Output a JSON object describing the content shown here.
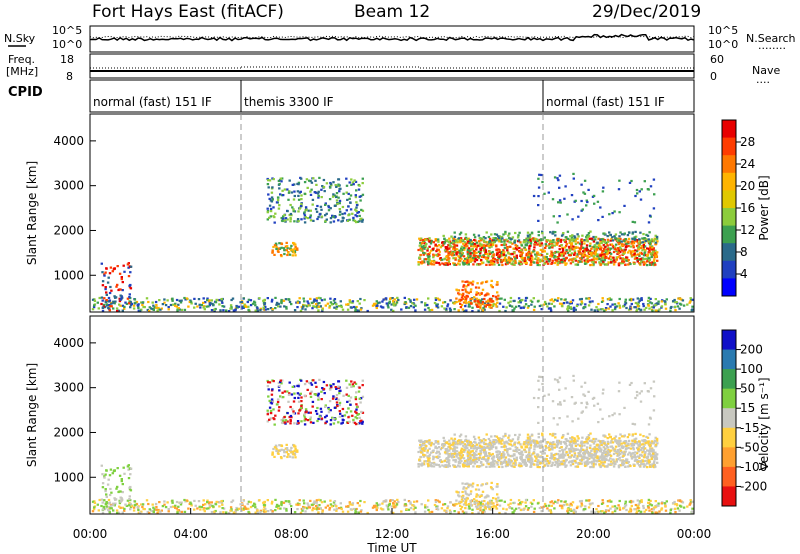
{
  "header": {
    "station": "Fort Hays East (fitACF)",
    "beam": "Beam 12",
    "date": "29/Dec/2019"
  },
  "noise_panel": {
    "left_label": "N.Sky",
    "left_ticks": [
      "10^5",
      "10^0"
    ],
    "right_ticks": [
      "10^5",
      "10^0"
    ],
    "right_label": "N.Search",
    "right_legend": "........"
  },
  "freq_panel": {
    "left_label_top": "Freq.",
    "left_label_unit": "[MHz]",
    "left_ticks": [
      "18",
      "8"
    ],
    "right_ticks": [
      "60",
      "0"
    ],
    "right_label": "Nave",
    "right_legend": "...."
  },
  "cpid_panel": {
    "label": "CPID",
    "segments": [
      {
        "name": "normal (fast) 151 IF",
        "start_h": 0.0,
        "end_h": 6.0
      },
      {
        "name": "themis 3300 IF",
        "start_h": 6.0,
        "end_h": 18.0
      },
      {
        "name": "normal (fast) 151 IF",
        "start_h": 18.0,
        "end_h": 24.0
      }
    ]
  },
  "chart_data": [
    {
      "type": "heatmap",
      "title": "",
      "ylabel": "Slant Range [km]",
      "xlabel": "",
      "x_range_hours": [
        0,
        24
      ],
      "ylim": [
        180,
        4600
      ],
      "y_ticks": [
        1000,
        2000,
        3000,
        4000
      ],
      "colorbar": {
        "label": "Power [dB]",
        "ticks": [
          "28",
          "24",
          "20",
          "16",
          "12",
          "8",
          "4"
        ],
        "colors": [
          "#e80000",
          "#ff3c00",
          "#ff7800",
          "#ffb400",
          "#e0c800",
          "#8ccc3c",
          "#3ca050",
          "#2a6a8a",
          "#2040c0",
          "#0000ff"
        ]
      }
    },
    {
      "type": "heatmap",
      "title": "",
      "ylabel": "Slant Range [km]",
      "xlabel": "Time UT",
      "x_range_hours": [
        0,
        24
      ],
      "ylim": [
        180,
        4600
      ],
      "y_ticks": [
        1000,
        2000,
        3000,
        4000
      ],
      "x_ticks": [
        "00:00",
        "04:00",
        "08:00",
        "12:00",
        "16:00",
        "20:00",
        "00:00"
      ],
      "colorbar": {
        "label": "Velocity [m s⁻¹]",
        "ticks": [
          "200",
          "100",
          "50",
          "15",
          "-15",
          "-50",
          "-100",
          "-200"
        ],
        "colors": [
          "#1010c8",
          "#2a7ab0",
          "#3ca050",
          "#7fd040",
          "#c8c8c0",
          "#ffd040",
          "#ffa030",
          "#ff6020",
          "#e81010"
        ]
      }
    }
  ]
}
